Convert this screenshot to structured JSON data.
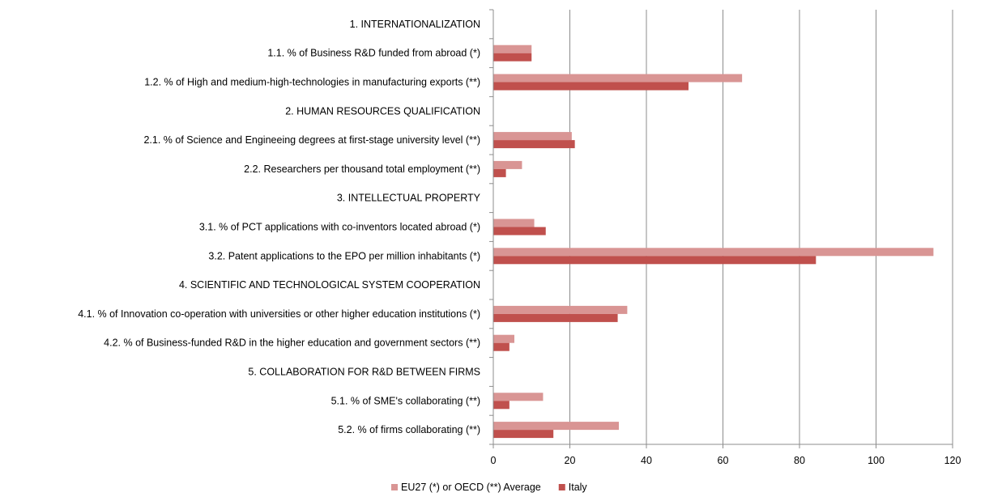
{
  "chart_data": {
    "type": "bar",
    "orientation": "horizontal",
    "categories": [
      "1. INTERNATIONALIZATION",
      "1.1. % of Business R&D funded from abroad (*)",
      "1.2. % of High and medium-high-technologies in manufacturing exports (**)",
      "2. HUMAN RESOURCES QUALIFICATION",
      "2.1. % of Science and Engineeing degrees at first-stage university level (**)",
      "2.2. Researchers per thousand total employment (**)",
      "3. INTELLECTUAL PROPERTY",
      "3.1. % of PCT applications with co-inventors located abroad (*)",
      "3.2. Patent applications to the EPO per million inhabitants (*)",
      "4. SCIENTIFIC AND TECHNOLOGICAL SYSTEM COOPERATION",
      "4.1. % of Innovation co-operation with universities or other higher education institutions (*)",
      "4.2. % of Business-funded R&D in the higher education and government sectors (**)",
      "5. COLLABORATION FOR R&D BETWEEN FIRMS",
      "5.1. % of SME's collaborating (**)",
      "5.2. % of firms collaborating (**)"
    ],
    "series": [
      {
        "name": "EU27 (*) or OECD (**) Average",
        "color": "#d99594",
        "values": [
          null,
          10,
          65,
          null,
          20.5,
          7.5,
          null,
          10.7,
          115,
          null,
          35,
          5.5,
          null,
          13,
          32.8
        ]
      },
      {
        "name": "Italy",
        "color": "#c0504d",
        "values": [
          null,
          10,
          51,
          null,
          21.3,
          3.3,
          null,
          13.7,
          84.3,
          null,
          32.5,
          4.2,
          null,
          4.2,
          15.7
        ]
      }
    ],
    "xlim": [
      0,
      120
    ],
    "xticks": [
      0,
      20,
      40,
      60,
      80,
      100,
      120
    ],
    "grid": true,
    "legend_position": "bottom"
  }
}
